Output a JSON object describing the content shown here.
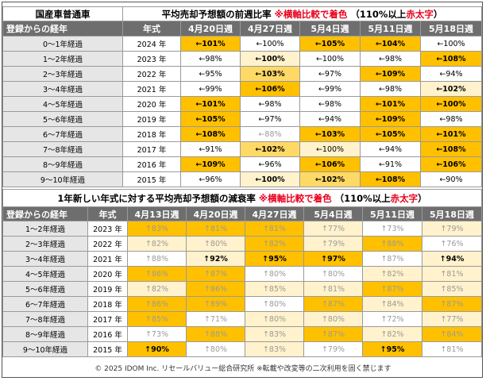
{
  "colors": {
    "dark": "#ffc000",
    "mid": "#ffd966",
    "light": "#fff2cc",
    "none": "#ffffff"
  },
  "t1": {
    "corner": "国産車普通車",
    "title_main": "平均売却予想額の前週比率",
    "title_note": "※横軸比較で着色",
    "title_paren_open": "（110%以上",
    "title_paren_red": "赤太字",
    "title_paren_close": "）",
    "h_age": "登録からの経年",
    "h_year": "年式",
    "weeks": [
      "4月20日週",
      "4月27日週",
      "5月4日週",
      "5月11日週",
      "5月18日週"
    ],
    "rows": [
      {
        "age": "0～1年経過",
        "year": "2024 年",
        "cells": [
          [
            "←101%",
            "dark",
            1,
            0
          ],
          [
            "←100%",
            "none",
            0,
            0
          ],
          [
            "←105%",
            "dark",
            1,
            0
          ],
          [
            "←104%",
            "dark",
            1,
            0
          ],
          [
            "←100%",
            "none",
            0,
            0
          ]
        ]
      },
      {
        "age": "1～2年経過",
        "year": "2023 年",
        "cells": [
          [
            "←98%",
            "none",
            0,
            0
          ],
          [
            "←100%",
            "light",
            1,
            0
          ],
          [
            "←100%",
            "none",
            0,
            0
          ],
          [
            "←98%",
            "none",
            0,
            0
          ],
          [
            "←108%",
            "dark",
            1,
            0
          ]
        ]
      },
      {
        "age": "2～3年経過",
        "year": "2022 年",
        "cells": [
          [
            "←95%",
            "none",
            0,
            0
          ],
          [
            "←103%",
            "mid",
            1,
            0
          ],
          [
            "←97%",
            "none",
            0,
            0
          ],
          [
            "←109%",
            "dark",
            1,
            0
          ],
          [
            "←94%",
            "none",
            0,
            0
          ]
        ]
      },
      {
        "age": "3～4年経過",
        "year": "2021 年",
        "cells": [
          [
            "←99%",
            "none",
            0,
            0
          ],
          [
            "←106%",
            "dark",
            1,
            0
          ],
          [
            "←99%",
            "none",
            0,
            0
          ],
          [
            "←98%",
            "none",
            0,
            0
          ],
          [
            "←102%",
            "light",
            1,
            0
          ]
        ]
      },
      {
        "age": "4～5年経過",
        "year": "2020 年",
        "cells": [
          [
            "←101%",
            "dark",
            1,
            0
          ],
          [
            "←98%",
            "none",
            0,
            0
          ],
          [
            "←98%",
            "none",
            0,
            0
          ],
          [
            "←101%",
            "dark",
            1,
            0
          ],
          [
            "←100%",
            "dark",
            1,
            0
          ]
        ]
      },
      {
        "age": "5～6年経過",
        "year": "2019 年",
        "cells": [
          [
            "←105%",
            "dark",
            1,
            0
          ],
          [
            "←97%",
            "none",
            0,
            0
          ],
          [
            "←94%",
            "none",
            0,
            0
          ],
          [
            "←109%",
            "dark",
            1,
            0
          ],
          [
            "←98%",
            "none",
            0,
            0
          ]
        ]
      },
      {
        "age": "6～7年経過",
        "year": "2018 年",
        "cells": [
          [
            "←108%",
            "dark",
            1,
            0
          ],
          [
            "←88%",
            "none",
            0,
            1
          ],
          [
            "←103%",
            "dark",
            1,
            0
          ],
          [
            "←105%",
            "dark",
            1,
            0
          ],
          [
            "←101%",
            "dark",
            1,
            0
          ]
        ]
      },
      {
        "age": "7～8年経過",
        "year": "2017 年",
        "cells": [
          [
            "←91%",
            "none",
            0,
            0
          ],
          [
            "←102%",
            "mid",
            1,
            0
          ],
          [
            "←100%",
            "light",
            0,
            0
          ],
          [
            "←94%",
            "none",
            0,
            0
          ],
          [
            "←108%",
            "dark",
            1,
            0
          ]
        ]
      },
      {
        "age": "8～9年経過",
        "year": "2016 年",
        "cells": [
          [
            "←109%",
            "dark",
            1,
            0
          ],
          [
            "←96%",
            "none",
            0,
            0
          ],
          [
            "←106%",
            "dark",
            1,
            0
          ],
          [
            "←91%",
            "none",
            0,
            0
          ],
          [
            "←106%",
            "dark",
            1,
            0
          ]
        ]
      },
      {
        "age": "9～10年経過",
        "year": "2015 年",
        "cells": [
          [
            "←96%",
            "none",
            0,
            0
          ],
          [
            "←100%",
            "light",
            1,
            0
          ],
          [
            "←102%",
            "mid",
            1,
            0
          ],
          [
            "←108%",
            "dark",
            1,
            0
          ],
          [
            "←90%",
            "none",
            0,
            0
          ]
        ]
      }
    ]
  },
  "t2": {
    "title_main": "1年新しい年式に対する平均売却予想額の減衰率",
    "title_note": "※横軸比較で着色",
    "title_paren_open": "（110%以上",
    "title_paren_red": "赤太字",
    "title_paren_close": "）",
    "h_age": "登録からの経年",
    "h_year": "年式",
    "weeks": [
      "4月13日週",
      "4月20日週",
      "4月27日週",
      "5月4日週",
      "5月11日週",
      "5月18日週"
    ],
    "rows": [
      {
        "age": "1～2年経過",
        "year": "2023 年",
        "cells": [
          [
            "↑83%",
            "dark",
            0,
            1
          ],
          [
            "↑81%",
            "dark",
            0,
            1
          ],
          [
            "↑81%",
            "dark",
            0,
            1
          ],
          [
            "↑77%",
            "light",
            0,
            1
          ],
          [
            "↑73%",
            "none",
            0,
            1
          ],
          [
            "↑79%",
            "light",
            0,
            1
          ]
        ]
      },
      {
        "age": "2～3年経過",
        "year": "2022 年",
        "cells": [
          [
            "↑82%",
            "light",
            0,
            1
          ],
          [
            "↑80%",
            "light",
            0,
            1
          ],
          [
            "↑82%",
            "dark",
            0,
            1
          ],
          [
            "↑79%",
            "light",
            0,
            1
          ],
          [
            "↑88%",
            "dark",
            0,
            1
          ],
          [
            "↑76%",
            "none",
            0,
            1
          ]
        ]
      },
      {
        "age": "3～4年経過",
        "year": "2021 年",
        "cells": [
          [
            "↑88%",
            "none",
            0,
            1
          ],
          [
            "↑92%",
            "light",
            1,
            0
          ],
          [
            "↑95%",
            "dark",
            1,
            0
          ],
          [
            "↑97%",
            "dark",
            1,
            0
          ],
          [
            "↑87%",
            "none",
            0,
            1
          ],
          [
            "↑94%",
            "light",
            1,
            0
          ]
        ]
      },
      {
        "age": "4～5年経過",
        "year": "2020 年",
        "cells": [
          [
            "↑86%",
            "dark",
            0,
            1
          ],
          [
            "↑87%",
            "dark",
            0,
            1
          ],
          [
            "↑80%",
            "none",
            0,
            1
          ],
          [
            "↑80%",
            "none",
            0,
            1
          ],
          [
            "↑82%",
            "light",
            0,
            1
          ],
          [
            "↑81%",
            "light",
            0,
            1
          ]
        ]
      },
      {
        "age": "5～6年経過",
        "year": "2019 年",
        "cells": [
          [
            "↑82%",
            "light",
            0,
            1
          ],
          [
            "↑86%",
            "dark",
            0,
            1
          ],
          [
            "↑85%",
            "light",
            0,
            1
          ],
          [
            "↑81%",
            "light",
            0,
            1
          ],
          [
            "↑87%",
            "dark",
            0,
            1
          ],
          [
            "↑85%",
            "light",
            0,
            1
          ]
        ]
      },
      {
        "age": "6～7年経過",
        "year": "2018 年",
        "cells": [
          [
            "↑86%",
            "dark",
            0,
            1
          ],
          [
            "↑89%",
            "dark",
            0,
            1
          ],
          [
            "↑80%",
            "none",
            0,
            1
          ],
          [
            "↑87%",
            "dark",
            0,
            1
          ],
          [
            "↑84%",
            "light",
            0,
            1
          ],
          [
            "↑87%",
            "dark",
            0,
            1
          ]
        ]
      },
      {
        "age": "7～8年経過",
        "year": "2017 年",
        "cells": [
          [
            "↑85%",
            "dark",
            0,
            1
          ],
          [
            "↑71%",
            "none",
            0,
            1
          ],
          [
            "↑80%",
            "light",
            0,
            1
          ],
          [
            "↑80%",
            "light",
            0,
            1
          ],
          [
            "↑72%",
            "none",
            0,
            1
          ],
          [
            "↑77%",
            "light",
            0,
            1
          ]
        ]
      },
      {
        "age": "8～9年経過",
        "year": "2016 年",
        "cells": [
          [
            "↑73%",
            "none",
            0,
            1
          ],
          [
            "↑88%",
            "dark",
            0,
            1
          ],
          [
            "↑83%",
            "light",
            0,
            1
          ],
          [
            "↑87%",
            "dark",
            0,
            1
          ],
          [
            "↑82%",
            "light",
            0,
            1
          ],
          [
            "↑84%",
            "dark",
            0,
            1
          ]
        ]
      },
      {
        "age": "9～10年経過",
        "year": "2015 年",
        "cells": [
          [
            "↑90%",
            "dark",
            1,
            0
          ],
          [
            "↑80%",
            "none",
            0,
            1
          ],
          [
            "↑83%",
            "light",
            0,
            1
          ],
          [
            "↑79%",
            "none",
            0,
            1
          ],
          [
            "↑95%",
            "dark",
            1,
            0
          ],
          [
            "↑81%",
            "none",
            0,
            1
          ]
        ]
      }
    ]
  },
  "footer": "© 2025 IDOM Inc. リセールバリュー総合研究所 ※転載や改変等の二次利用を固く禁じます"
}
